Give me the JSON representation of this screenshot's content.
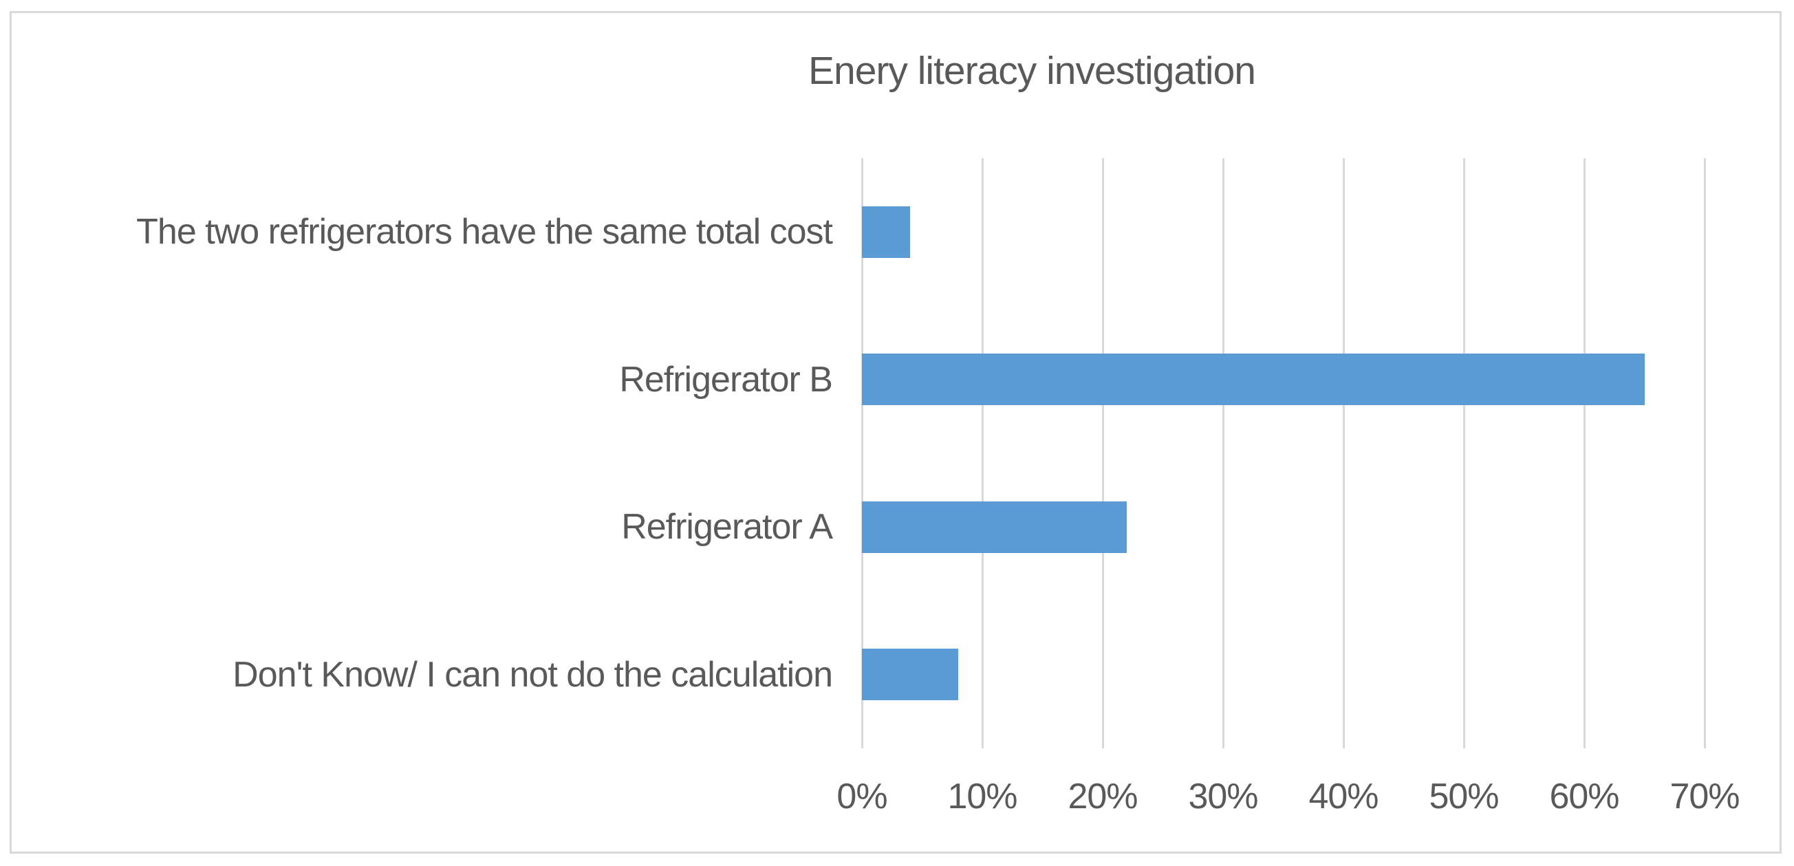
{
  "chart_data": {
    "type": "bar",
    "orientation": "horizontal",
    "title": "Enery literacy investigation",
    "categories": [
      "The two refrigerators have the same total cost",
      "Refrigerator B",
      "Refrigerator A",
      "Don't Know/ I can not do the calculation"
    ],
    "values": [
      4,
      65,
      22,
      8
    ],
    "value_unit": "percent",
    "x_tick_labels": [
      "0%",
      "10%",
      "20%",
      "30%",
      "40%",
      "50%",
      "60%",
      "70%"
    ],
    "xlim": [
      0,
      70
    ],
    "legend": "none",
    "grid": "vertical",
    "colors": {
      "bar": "#5b9bd5",
      "text": "#595959",
      "gridline": "#d9d9d9",
      "chart_border": "#d9d9d9",
      "background": "#ffffff"
    }
  }
}
